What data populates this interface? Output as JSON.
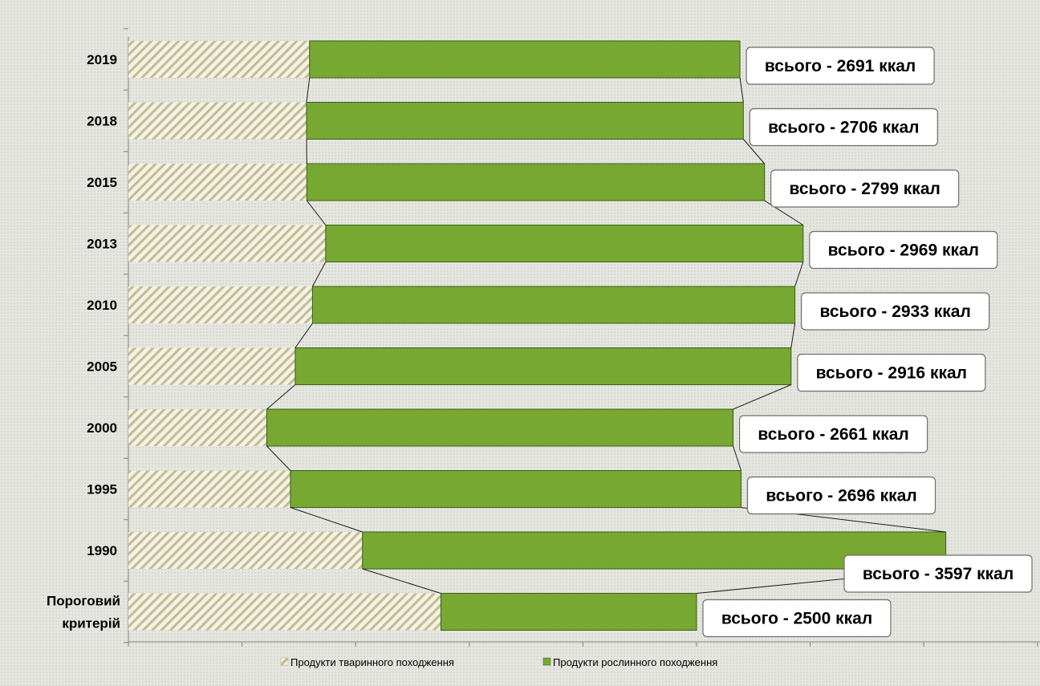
{
  "chart_data": {
    "type": "bar",
    "orientation": "horizontal",
    "stacked": true,
    "categories": [
      "2019",
      "2018",
      "2015",
      "2013",
      "2010",
      "2005",
      "2000",
      "1995",
      "1990",
      "Пороговий критерій"
    ],
    "series": [
      {
        "name": "Продукти тваринного походження",
        "values": [
          797,
          784,
          785,
          868,
          810,
          734,
          609,
          713,
          1030,
          1375
        ],
        "pattern": "diagonal-hatch",
        "color": "#d8d3b4"
      },
      {
        "name": "Продукти рослинного походження",
        "values": [
          1894,
          1922,
          2014,
          2101,
          2123,
          2182,
          2052,
          1983,
          2567,
          1125
        ],
        "color": "#76a832"
      }
    ],
    "data_labels": [
      "всього - 2691 ккал",
      "всього - 2706 ккал",
      "всього - 2799 ккал",
      "всього - 2969 ккал",
      "всього - 2933 ккал",
      "всього - 2916 ккал",
      "всього - 2661 ккал",
      "всього - 2696 ккал",
      "всього - 3597 ккал",
      "всього - 2500 ккал"
    ],
    "xlim": [
      0,
      4000
    ],
    "x_tick_step": 500,
    "x_tick_labels_shown": false,
    "series_lines": true,
    "legend_position": "bottom",
    "grid": false
  }
}
